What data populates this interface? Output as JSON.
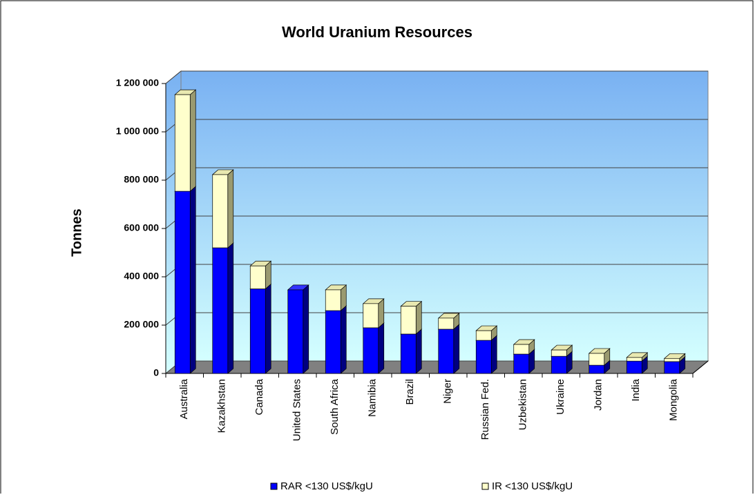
{
  "chart_data": {
    "type": "bar",
    "stacked": true,
    "title": "World Uranium Resources",
    "ylabel": "Tonnes",
    "categories": [
      "Australia",
      "Kazakhstan",
      "Canada",
      "United States",
      "South Africa",
      "Namibia",
      "Brazil",
      "Niger",
      "Russian Fed.",
      "Uzbekistan",
      "Ukraine",
      "Jordan",
      "India",
      "Mongolia"
    ],
    "series": [
      {
        "name": "RAR <130 US$/kgU",
        "color": "#0000ff",
        "values": [
          754000,
          520000,
          350000,
          346000,
          260000,
          189000,
          163000,
          183000,
          137000,
          80000,
          71000,
          34000,
          51000,
          49000
        ]
      },
      {
        "name": "IR <130 US$/kgU",
        "color": "#ffffcc",
        "values": [
          400000,
          303000,
          95000,
          0,
          86000,
          100000,
          115000,
          46000,
          40000,
          40000,
          26000,
          49000,
          15000,
          13000
        ]
      }
    ],
    "ylim": [
      0,
      1200000
    ],
    "yticks": [
      0,
      {
        "value": 200000,
        "label": "200 000"
      },
      {
        "value": 400000,
        "label": "400 000"
      },
      {
        "value": 600000,
        "label": "600 000"
      },
      {
        "value": 800000,
        "label": "800 000"
      },
      {
        "value": 1000000,
        "label": "1 000 000"
      },
      {
        "value": 1200000,
        "label": "1 200 000"
      }
    ],
    "grid": true,
    "legend": "bottom"
  }
}
